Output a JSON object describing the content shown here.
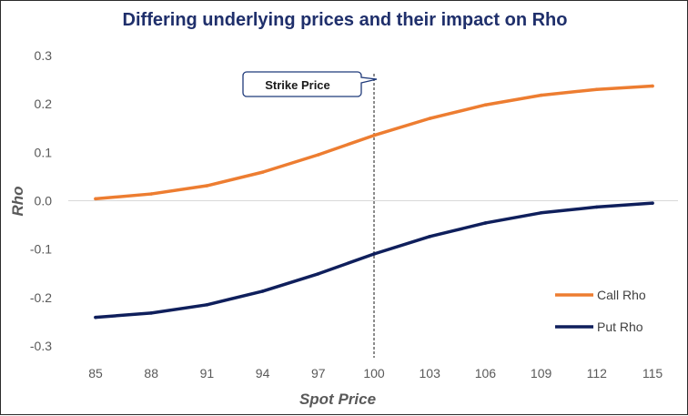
{
  "chart_data": {
    "type": "line",
    "title": "Differing underlying prices and their impact on Rho",
    "xlabel": "Spot Price",
    "ylabel": "Rho",
    "categories": [
      "85",
      "88",
      "91",
      "94",
      "97",
      "100",
      "103",
      "106",
      "109",
      "112",
      "115"
    ],
    "y_ticks": [
      "0.3",
      "0.2",
      "0.1",
      "0.0",
      "-0.1",
      "-0.2",
      "-0.3"
    ],
    "ylim": [
      -0.3,
      0.3
    ],
    "grid": false,
    "zero_line": true,
    "legend_position": "bottom-right",
    "series": [
      {
        "name": "Call Rho",
        "color": "#ed7d31",
        "values": [
          0.004,
          0.014,
          0.031,
          0.059,
          0.095,
          0.135,
          0.17,
          0.198,
          0.218,
          0.23,
          0.237
        ]
      },
      {
        "name": "Put Rho",
        "color": "#0f1f5c",
        "values": [
          -0.241,
          -0.232,
          -0.215,
          -0.187,
          -0.151,
          -0.11,
          -0.074,
          -0.046,
          -0.025,
          -0.013,
          -0.005
        ]
      }
    ],
    "annotation": {
      "text": "Strike Price",
      "at_category": "100",
      "line_style": "dashed"
    }
  },
  "colors": {
    "title": "#1f2f6b",
    "axis_text": "#595959",
    "zero_line": "#d9d9d9"
  }
}
